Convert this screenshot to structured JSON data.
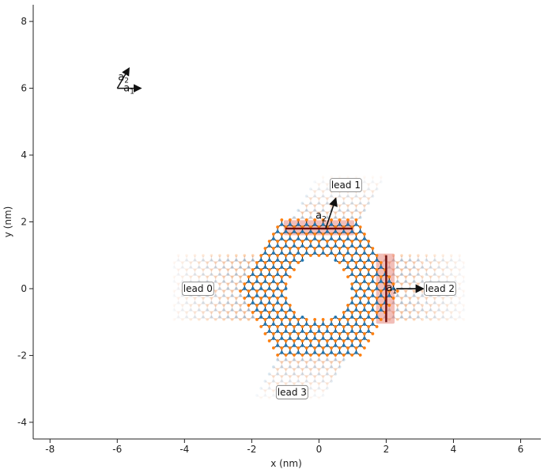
{
  "chart_data": {
    "type": "scatter",
    "title": "",
    "xlabel": "x (nm)",
    "ylabel": "y (nm)",
    "xlim": [
      -8.5,
      6.6
    ],
    "ylim": [
      -4.5,
      8.5
    ],
    "xticks": [
      -8,
      -6,
      -4,
      -2,
      0,
      2,
      4,
      6
    ],
    "yticks": [
      -4,
      -2,
      0,
      2,
      4,
      6,
      8
    ],
    "xtick_labels": [
      "-8",
      "-6",
      "-4",
      "-2",
      "0",
      "2",
      "4",
      "6"
    ],
    "ytick_labels": [
      "-4",
      "-2",
      "0",
      "2",
      "4",
      "6",
      "8"
    ],
    "lattice_vectors": {
      "origin": [
        -6.0,
        6.0
      ],
      "a1": {
        "label": "a",
        "sub": "1",
        "vector": [
          0.7,
          0.0
        ]
      },
      "a2": {
        "label": "a",
        "sub": "2",
        "vector": [
          0.35,
          0.6
        ]
      }
    },
    "scattering_region": {
      "hexagon_center": [
        0,
        0
      ],
      "hexagon_radius_nm": 2.4,
      "hole_radius_nm": 0.9,
      "sublattice_colors": [
        "#1f77b4",
        "#ff7f0e"
      ]
    },
    "leads": [
      {
        "label": "lead 0",
        "label_pos": [
          -3.6,
          0.0
        ],
        "bond_color": "#e8a48d"
      },
      {
        "label": "lead 1",
        "label_pos": [
          0.8,
          3.1
        ],
        "bond_color": "#e8a48d",
        "interface": [
          [
            -1.0,
            1.8
          ],
          [
            1.0,
            1.8
          ]
        ],
        "arrow_from": [
          0.2,
          1.8
        ],
        "arrow_to": [
          0.5,
          2.7
        ],
        "vector_label": {
          "label": "a",
          "sub": "2"
        }
      },
      {
        "label": "lead 2",
        "label_pos": [
          3.6,
          0.0
        ],
        "bond_color": "#e8a48d",
        "interface": [
          [
            2.0,
            1.0
          ],
          [
            2.0,
            -1.0
          ]
        ],
        "arrow_from": [
          2.3,
          0.0
        ],
        "arrow_to": [
          3.1,
          0.0
        ],
        "vector_label": {
          "label": "a",
          "sub": "1"
        }
      },
      {
        "label": "lead 3",
        "label_pos": [
          -0.8,
          -3.1
        ],
        "bond_color": "#e8a48d"
      }
    ]
  }
}
